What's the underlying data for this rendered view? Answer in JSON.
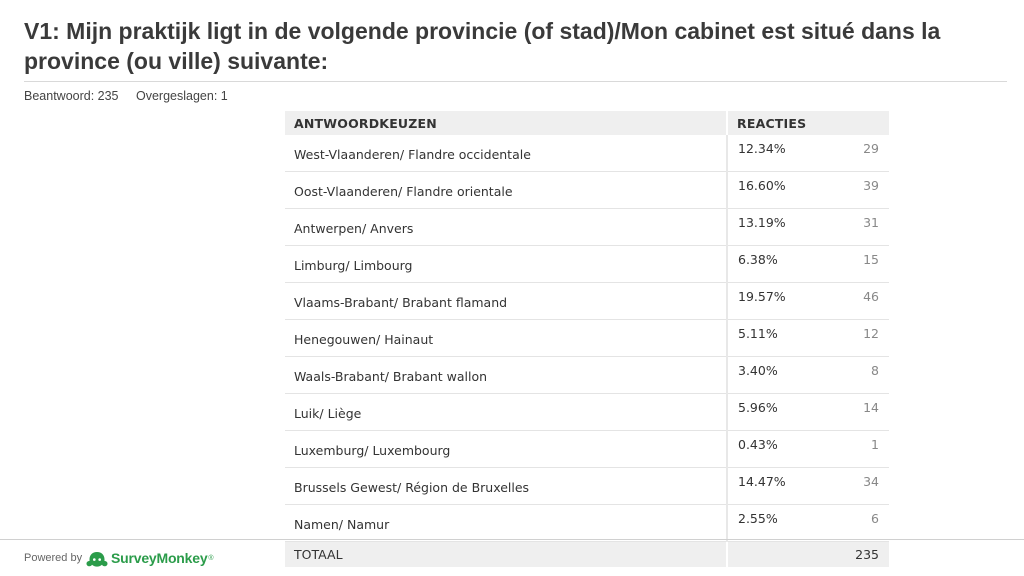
{
  "question": {
    "title": "V1: Mijn praktijk ligt in de volgende provincie (of stad)/Mon cabinet est situé dans la province (ou ville) suivante:",
    "answered": "Beantwoord: 235",
    "skipped": "Overgeslagen: 1"
  },
  "table": {
    "header_choice": "ANTWOORDKEUZEN",
    "header_responses": "REACTIES",
    "rows": [
      {
        "choice": "West-Vlaanderen/ Flandre occidentale",
        "percent": "12.34%",
        "count": "29"
      },
      {
        "choice": "Oost-Vlaanderen/ Flandre orientale",
        "percent": "16.60%",
        "count": "39"
      },
      {
        "choice": "Antwerpen/ Anvers",
        "percent": "13.19%",
        "count": "31"
      },
      {
        "choice": "Limburg/ Limbourg",
        "percent": "6.38%",
        "count": "15"
      },
      {
        "choice": "Vlaams-Brabant/ Brabant flamand",
        "percent": "19.57%",
        "count": "46"
      },
      {
        "choice": "Henegouwen/ Hainaut",
        "percent": "5.11%",
        "count": "12"
      },
      {
        "choice": "Waals-Brabant/ Brabant wallon",
        "percent": "3.40%",
        "count": "8"
      },
      {
        "choice": "Luik/ Liège",
        "percent": "5.96%",
        "count": "14"
      },
      {
        "choice": "Luxemburg/ Luxembourg",
        "percent": "0.43%",
        "count": "1"
      },
      {
        "choice": "Brussels Gewest/ Région de Bruxelles",
        "percent": "14.47%",
        "count": "34"
      },
      {
        "choice": "Namen/ Namur",
        "percent": "2.55%",
        "count": "6"
      }
    ],
    "total_label": "TOTAAL",
    "total_value": "235"
  },
  "footer": {
    "powered_by": "Powered by",
    "brand": "SurveyMonkey",
    "trademark": "®",
    "brand_color": "#2b9c4a",
    "logo_icon": "surveymonkey-logo-icon"
  }
}
